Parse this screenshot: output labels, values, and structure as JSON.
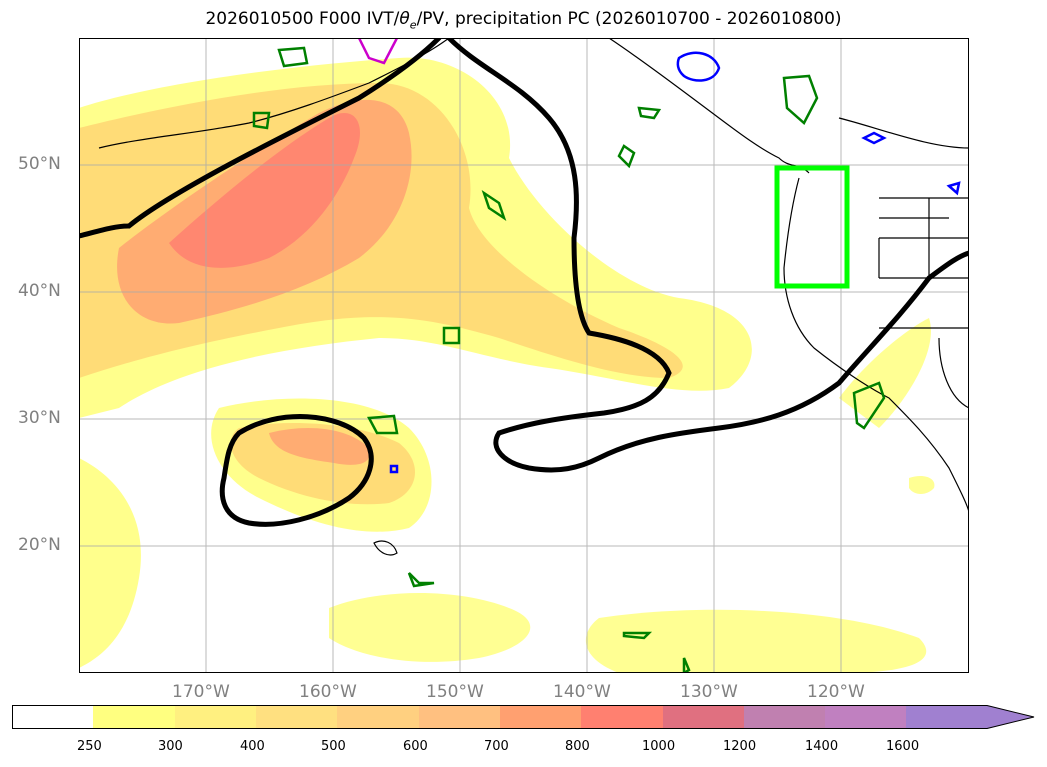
{
  "title": "2026010500 F000 IVT/θe/PV, precipitation PC (2026010700 - 2026010800)",
  "title_parts": {
    "prefix": "2026010500 F000 IVT/",
    "theta": "θ",
    "theta_sub": "e",
    "suffix": "/PV, precipitation PC (2026010700 - 2026010800)"
  },
  "map": {
    "lon_range": [
      -180,
      -110
    ],
    "lat_range": [
      10,
      60
    ],
    "lat_ticks": [
      "50°N",
      "40°N",
      "30°N",
      "20°N"
    ],
    "lon_ticks": [
      "170°W",
      "160°W",
      "150°W",
      "140°W",
      "130°W",
      "120°W"
    ],
    "highlight_box": {
      "color": "#00ff00",
      "lon": [
        -125,
        -119.5
      ],
      "lat": [
        40.5,
        49.8
      ]
    },
    "contour_colors": {
      "thick": "#000000",
      "green": "#008000",
      "blue": "#0000ff",
      "magenta": "#cc00cc"
    }
  },
  "colorbar": {
    "labels": [
      "250",
      "300",
      "400",
      "500",
      "600",
      "700",
      "800",
      "1000",
      "1200",
      "1400",
      "1600"
    ],
    "colors": [
      "#ffffff",
      "#ffff80",
      "#fff080",
      "#ffe080",
      "#ffd080",
      "#ffc080",
      "#ffa070",
      "#ff8070",
      "#e07080",
      "#c080b0",
      "#c080c0",
      "#a080d0"
    ]
  }
}
